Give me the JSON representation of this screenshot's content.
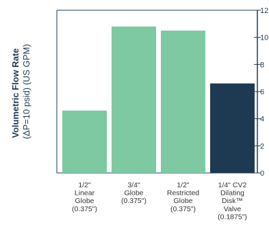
{
  "chart_data": {
    "type": "bar",
    "categories": [
      [
        "1/2\"",
        "Linear",
        "Globe",
        "(0.375\")"
      ],
      [
        "3/4\"",
        "Globe",
        "(0.375\")"
      ],
      [
        "1/2\"",
        "Restricted",
        "Globe",
        "(0.375\")"
      ],
      [
        "1/4\" CV2",
        "Dilating",
        "Disk™",
        "Valve",
        "(0.1875\")"
      ]
    ],
    "values": [
      4.6,
      10.8,
      10.5,
      6.6
    ],
    "colors": [
      "#7ec8a2",
      "#7ec8a2",
      "#7ec8a2",
      "#1e3a52"
    ],
    "title": "",
    "ylabel": "Volumetric Flow Rate",
    "ylabel_sub": "(ΔP=10 psid) (US GPM)",
    "ylim": [
      0,
      12
    ],
    "yticks": [
      0,
      2,
      4,
      6,
      8,
      10,
      12
    ],
    "y_axis_position": "right",
    "grid": false,
    "axis_color": "#1e3a52"
  }
}
